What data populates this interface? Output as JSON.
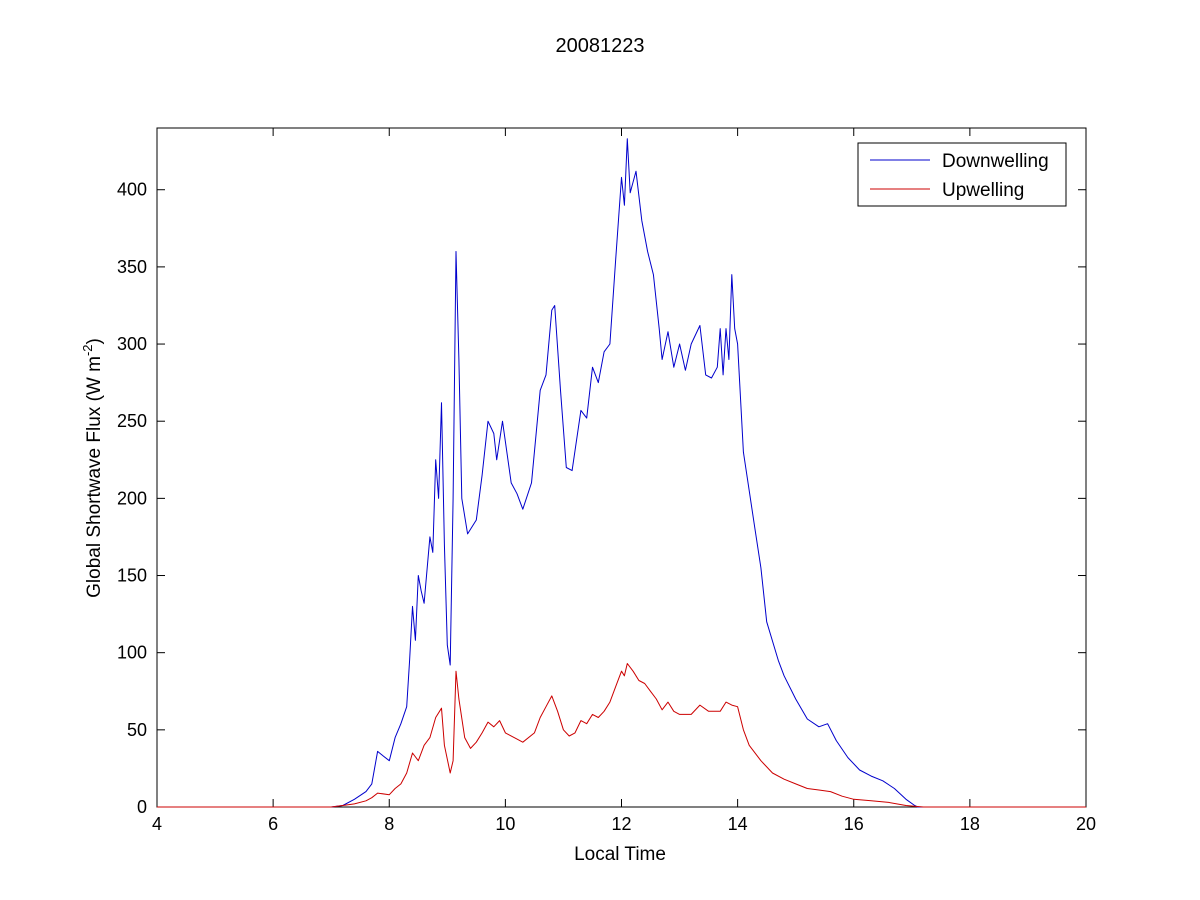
{
  "chart_data": {
    "type": "line",
    "title": "20081223",
    "xlabel": "Local Time",
    "ylabel": {
      "main": "Global Shortwave Flux (W m",
      "sup": "-2",
      "close": ")"
    },
    "xlim": [
      4,
      20
    ],
    "ylim": [
      0,
      440
    ],
    "xticks": [
      4,
      6,
      8,
      10,
      12,
      14,
      16,
      18,
      20
    ],
    "yticks": [
      0,
      50,
      100,
      150,
      200,
      250,
      300,
      350,
      400
    ],
    "grid": false,
    "legend": "top-right",
    "series": [
      {
        "name": "Downwelling",
        "color": "#0000cc",
        "points": [
          [
            4,
            0
          ],
          [
            6,
            0
          ],
          [
            7,
            0
          ],
          [
            7.2,
            1
          ],
          [
            7.4,
            5
          ],
          [
            7.6,
            10
          ],
          [
            7.7,
            15
          ],
          [
            7.8,
            36
          ],
          [
            7.9,
            33
          ],
          [
            8.0,
            30
          ],
          [
            8.1,
            45
          ],
          [
            8.2,
            54
          ],
          [
            8.3,
            65
          ],
          [
            8.35,
            95
          ],
          [
            8.4,
            130
          ],
          [
            8.45,
            108
          ],
          [
            8.5,
            150
          ],
          [
            8.55,
            140
          ],
          [
            8.6,
            132
          ],
          [
            8.7,
            175
          ],
          [
            8.75,
            165
          ],
          [
            8.8,
            225
          ],
          [
            8.85,
            200
          ],
          [
            8.9,
            262
          ],
          [
            8.95,
            170
          ],
          [
            9.0,
            105
          ],
          [
            9.05,
            92
          ],
          [
            9.1,
            200
          ],
          [
            9.15,
            360
          ],
          [
            9.2,
            290
          ],
          [
            9.25,
            200
          ],
          [
            9.35,
            177
          ],
          [
            9.5,
            186
          ],
          [
            9.6,
            215
          ],
          [
            9.7,
            250
          ],
          [
            9.8,
            242
          ],
          [
            9.85,
            225
          ],
          [
            9.95,
            250
          ],
          [
            10.1,
            210
          ],
          [
            10.2,
            203
          ],
          [
            10.3,
            193
          ],
          [
            10.45,
            210
          ],
          [
            10.6,
            270
          ],
          [
            10.7,
            280
          ],
          [
            10.8,
            322
          ],
          [
            10.85,
            325
          ],
          [
            10.95,
            270
          ],
          [
            11.05,
            220
          ],
          [
            11.15,
            218
          ],
          [
            11.3,
            257
          ],
          [
            11.4,
            252
          ],
          [
            11.5,
            285
          ],
          [
            11.6,
            275
          ],
          [
            11.7,
            295
          ],
          [
            11.8,
            300
          ],
          [
            11.9,
            355
          ],
          [
            12.0,
            408
          ],
          [
            12.05,
            390
          ],
          [
            12.1,
            433
          ],
          [
            12.15,
            398
          ],
          [
            12.25,
            412
          ],
          [
            12.35,
            380
          ],
          [
            12.45,
            360
          ],
          [
            12.55,
            345
          ],
          [
            12.65,
            310
          ],
          [
            12.7,
            290
          ],
          [
            12.8,
            308
          ],
          [
            12.9,
            285
          ],
          [
            13.0,
            300
          ],
          [
            13.1,
            283
          ],
          [
            13.2,
            300
          ],
          [
            13.35,
            312
          ],
          [
            13.45,
            280
          ],
          [
            13.55,
            278
          ],
          [
            13.65,
            285
          ],
          [
            13.7,
            310
          ],
          [
            13.75,
            280
          ],
          [
            13.8,
            310
          ],
          [
            13.85,
            290
          ],
          [
            13.9,
            345
          ],
          [
            13.95,
            310
          ],
          [
            14.0,
            300
          ],
          [
            14.1,
            230
          ],
          [
            14.2,
            205
          ],
          [
            14.3,
            180
          ],
          [
            14.4,
            155
          ],
          [
            14.5,
            120
          ],
          [
            14.7,
            95
          ],
          [
            14.8,
            85
          ],
          [
            15.0,
            70
          ],
          [
            15.2,
            57
          ],
          [
            15.4,
            52
          ],
          [
            15.55,
            54
          ],
          [
            15.7,
            43
          ],
          [
            15.9,
            32
          ],
          [
            16.1,
            24
          ],
          [
            16.3,
            20
          ],
          [
            16.5,
            17
          ],
          [
            16.7,
            12
          ],
          [
            16.9,
            5
          ],
          [
            17.05,
            1
          ],
          [
            17.1,
            0
          ],
          [
            20,
            0
          ]
        ]
      },
      {
        "name": "Upwelling",
        "color": "#cc0000",
        "points": [
          [
            4,
            0
          ],
          [
            6,
            0
          ],
          [
            7,
            0
          ],
          [
            7.2,
            1
          ],
          [
            7.4,
            2
          ],
          [
            7.6,
            4
          ],
          [
            7.7,
            6
          ],
          [
            7.8,
            9
          ],
          [
            8.0,
            8
          ],
          [
            8.1,
            12
          ],
          [
            8.2,
            15
          ],
          [
            8.3,
            22
          ],
          [
            8.4,
            35
          ],
          [
            8.5,
            30
          ],
          [
            8.6,
            40
          ],
          [
            8.7,
            45
          ],
          [
            8.8,
            58
          ],
          [
            8.9,
            64
          ],
          [
            8.95,
            40
          ],
          [
            9.05,
            22
          ],
          [
            9.1,
            30
          ],
          [
            9.15,
            88
          ],
          [
            9.2,
            70
          ],
          [
            9.3,
            45
          ],
          [
            9.4,
            38
          ],
          [
            9.5,
            42
          ],
          [
            9.6,
            48
          ],
          [
            9.7,
            55
          ],
          [
            9.8,
            52
          ],
          [
            9.9,
            56
          ],
          [
            10.0,
            48
          ],
          [
            10.2,
            44
          ],
          [
            10.3,
            42
          ],
          [
            10.5,
            48
          ],
          [
            10.6,
            58
          ],
          [
            10.7,
            65
          ],
          [
            10.8,
            72
          ],
          [
            10.9,
            62
          ],
          [
            11.0,
            50
          ],
          [
            11.1,
            46
          ],
          [
            11.2,
            48
          ],
          [
            11.3,
            56
          ],
          [
            11.4,
            54
          ],
          [
            11.5,
            60
          ],
          [
            11.6,
            58
          ],
          [
            11.7,
            62
          ],
          [
            11.8,
            68
          ],
          [
            11.9,
            78
          ],
          [
            12.0,
            88
          ],
          [
            12.05,
            85
          ],
          [
            12.1,
            93
          ],
          [
            12.2,
            88
          ],
          [
            12.3,
            82
          ],
          [
            12.4,
            80
          ],
          [
            12.5,
            75
          ],
          [
            12.6,
            70
          ],
          [
            12.7,
            63
          ],
          [
            12.8,
            68
          ],
          [
            12.9,
            62
          ],
          [
            13.0,
            60
          ],
          [
            13.2,
            60
          ],
          [
            13.35,
            66
          ],
          [
            13.5,
            62
          ],
          [
            13.7,
            62
          ],
          [
            13.8,
            68
          ],
          [
            13.9,
            66
          ],
          [
            14.0,
            65
          ],
          [
            14.1,
            50
          ],
          [
            14.2,
            40
          ],
          [
            14.4,
            30
          ],
          [
            14.6,
            22
          ],
          [
            14.8,
            18
          ],
          [
            15.0,
            15
          ],
          [
            15.2,
            12
          ],
          [
            15.4,
            11
          ],
          [
            15.6,
            10
          ],
          [
            15.8,
            7
          ],
          [
            16.0,
            5
          ],
          [
            16.3,
            4
          ],
          [
            16.6,
            3
          ],
          [
            16.9,
            1
          ],
          [
            17.2,
            0
          ],
          [
            20,
            0
          ]
        ]
      }
    ]
  }
}
